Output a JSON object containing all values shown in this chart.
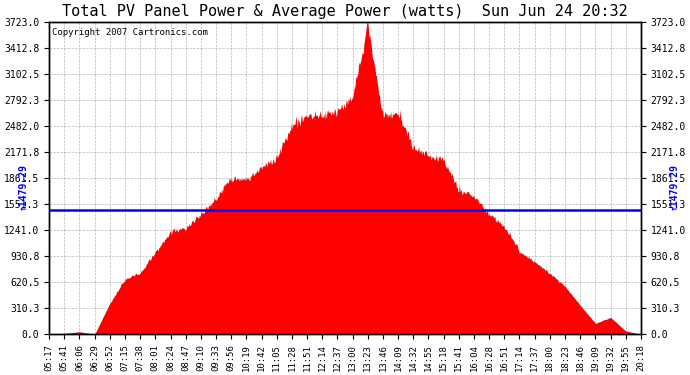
{
  "title": "Total PV Panel Power & Average Power (watts)  Sun Jun 24 20:32",
  "copyright": "Copyright 2007 Cartronics.com",
  "avg_power": 1479.29,
  "y_max": 3723.0,
  "y_min": 0.0,
  "y_ticks": [
    0.0,
    310.3,
    620.5,
    930.8,
    1241.0,
    1551.3,
    1861.5,
    2171.8,
    2482.0,
    2792.3,
    3102.5,
    3412.8,
    3723.0
  ],
  "x_labels": [
    "05:17",
    "05:41",
    "06:06",
    "06:29",
    "06:52",
    "07:15",
    "07:38",
    "08:01",
    "08:24",
    "08:47",
    "09:10",
    "09:33",
    "09:56",
    "10:19",
    "10:42",
    "11:05",
    "11:28",
    "11:51",
    "12:14",
    "12:37",
    "13:00",
    "13:23",
    "13:46",
    "14:09",
    "14:32",
    "14:55",
    "15:18",
    "15:41",
    "16:04",
    "16:28",
    "16:51",
    "17:14",
    "17:37",
    "18:00",
    "18:23",
    "18:46",
    "19:09",
    "19:32",
    "19:55",
    "20:18"
  ],
  "background_color": "#ffffff",
  "plot_bg_color": "#ffffff",
  "fill_color": "#ff0000",
  "line_color": "#ff0000",
  "avg_line_color": "#0000ff",
  "grid_color": "#888888",
  "title_fontsize": 11,
  "copyright_fontsize": 6.5,
  "tick_fontsize": 7
}
